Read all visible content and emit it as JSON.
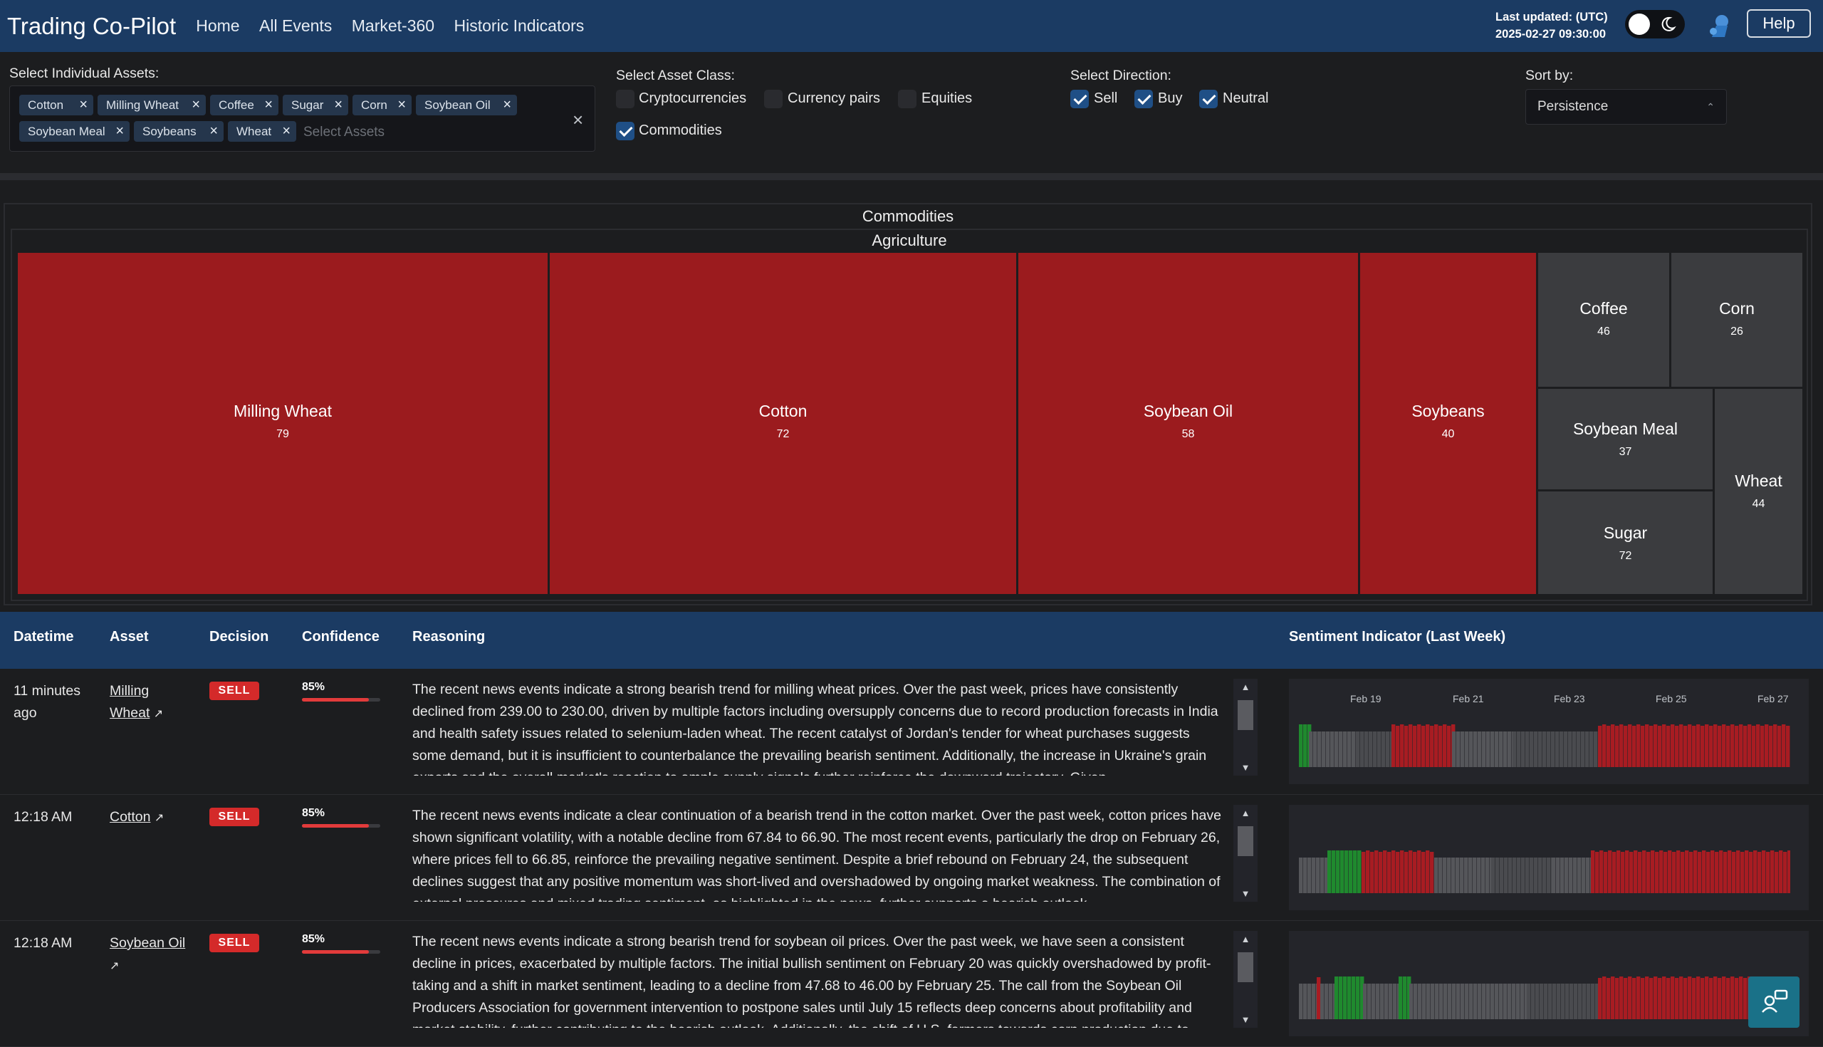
{
  "header": {
    "brand": "Trading Co-Pilot",
    "nav": [
      "Home",
      "All Events",
      "Market-360",
      "Historic Indicators"
    ],
    "last_updated_label": "Last updated: (UTC)",
    "last_updated_value": "2025-02-27 09:30:00",
    "help_label": "Help"
  },
  "filters": {
    "assets_label": "Select Individual Assets:",
    "selected_assets": [
      "Cotton",
      "Milling Wheat",
      "Coffee",
      "Sugar",
      "Corn",
      "Soybean Oil",
      "Soybean Meal",
      "Soybeans",
      "Wheat"
    ],
    "assets_placeholder": "Select Assets",
    "asset_class_label": "Select Asset Class:",
    "asset_classes": [
      {
        "label": "Cryptocurrencies",
        "checked": false
      },
      {
        "label": "Currency pairs",
        "checked": false
      },
      {
        "label": "Equities",
        "checked": false
      },
      {
        "label": "Commodities",
        "checked": true
      }
    ],
    "direction_label": "Select Direction:",
    "directions": [
      {
        "label": "Sell",
        "checked": true
      },
      {
        "label": "Buy",
        "checked": true
      },
      {
        "label": "Neutral",
        "checked": true
      }
    ],
    "sort_label": "Sort by:",
    "sort_value": "Persistence"
  },
  "treemap": {
    "title": "Commodities",
    "subtitle": "Agriculture",
    "tiles": [
      {
        "name": "Milling Wheat",
        "value": "79",
        "color": "#9b1b1e"
      },
      {
        "name": "Cotton",
        "value": "72",
        "color": "#9b1b1e"
      },
      {
        "name": "Soybean Oil",
        "value": "58",
        "color": "#9b1b1e"
      },
      {
        "name": "Soybeans",
        "value": "40",
        "color": "#9b1b1e"
      },
      {
        "name": "Coffee",
        "value": "46",
        "color": "#3b3c3f"
      },
      {
        "name": "Corn",
        "value": "26",
        "color": "#3b3c3f"
      },
      {
        "name": "Soybean Meal",
        "value": "37",
        "color": "#3b3c3f"
      },
      {
        "name": "Wheat",
        "value": "44",
        "color": "#3b3c3f"
      },
      {
        "name": "Sugar",
        "value": "72",
        "color": "#3b3c3f"
      }
    ]
  },
  "table": {
    "headers": {
      "datetime": "Datetime",
      "asset": "Asset",
      "decision": "Decision",
      "confidence": "Confidence",
      "reasoning": "Reasoning",
      "sentiment": "Sentiment Indicator (Last Week)"
    },
    "rows": [
      {
        "datetime": "11 minutes ago",
        "asset": "Milling Wheat",
        "decision": "SELL",
        "confidence": "85%",
        "confidence_fraction": 0.85,
        "reasoning": "The recent news events indicate a strong bearish trend for milling wheat prices. Over the past week, prices have consistently declined from 239.00 to 230.00, driven by multiple factors including oversupply concerns due to record production forecasts in India and health safety issues related to selenium-laden wheat. The recent catalyst of Jordan's tender for wheat purchases suggests some demand, but it is insufficient to counterbalance the prevailing bearish sentiment. Additionally, the increase in Ukraine's grain exports and the overall market's reaction to ample supply signals further reinforce the downward trajectory. Given",
        "axis": [
          "Feb 19",
          "Feb 21",
          "Feb 23",
          "Feb 25",
          "Feb 27"
        ]
      },
      {
        "datetime": "12:18 AM",
        "asset": "Cotton",
        "decision": "SELL",
        "confidence": "85%",
        "confidence_fraction": 0.85,
        "reasoning": "The recent news events indicate a clear continuation of a bearish trend in the cotton market. Over the past week, cotton prices have shown significant volatility, with a notable decline from 67.84 to 66.90. The most recent events, particularly the drop on February 26, where prices fell to 66.85, reinforce the prevailing negative sentiment. Despite a brief rebound on February 24, the subsequent declines suggest that any positive momentum was short-lived and overshadowed by ongoing market weakness. The combination of external pressures and mixed trading sentiment, as highlighted in the news, further supports a bearish outlook.",
        "axis": []
      },
      {
        "datetime": "12:18 AM",
        "asset": "Soybean Oil",
        "decision": "SELL",
        "confidence": "85%",
        "confidence_fraction": 0.85,
        "reasoning": "The recent news events indicate a strong bearish trend for soybean oil prices. Over the past week, we have seen a consistent decline in prices, exacerbated by multiple factors. The initial bullish sentiment on February 20 was quickly overshadowed by profit-taking and a shift in market sentiment, leading to a decline from 47.68 to 46.00 by February 25. The call from the Soybean Oil Producers Association for government intervention to postpone sales until July 15 reflects deep concerns about profitability and market stability, further contributing to the bearish outlook. Additionally, the shift of U.S. farmers towards corn production due to",
        "axis": []
      }
    ]
  },
  "colors": {
    "header_bg": "#1b3b63",
    "sell_red": "#d42a2a",
    "tile_red": "#9b1b1e",
    "tile_gray": "#3b3c3f",
    "senti_green": "#1f8a2e",
    "senti_red": "#a81c22",
    "senti_gray": "#55565a"
  },
  "icons": {
    "theme": "moon-icon",
    "assistant": "robot-icon",
    "chat": "chat-support-icon"
  }
}
